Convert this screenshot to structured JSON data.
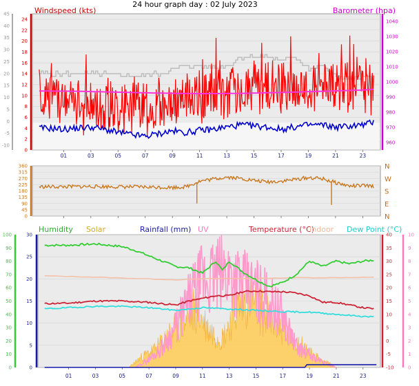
{
  "page_title": "24 hour graph day : 02 July 2023",
  "colors": {
    "plot_bg": "#ebebeb",
    "frame": "#9a9a9a",
    "grid": "#d2d2d2",
    "wind_gust": "#ff0000",
    "wind_avg": "#0000cc",
    "pressure": "#ff33dd",
    "baro_axis": "#cc00cc",
    "prev_gust": "#bdbdbd",
    "wind_dir": "#c8781e",
    "humidity": "#33cc33",
    "solar": "#ffcc55",
    "rainfall": "#1a1aaa",
    "uv": "#ff99cc",
    "temperature": "#cc2233",
    "indoor": "#f5c0a8",
    "dewpoint": "#33dddd",
    "uv_axis": "#ff77bb",
    "x_tick": "#1a237e"
  },
  "chart_data": [
    {
      "id": "wind_pressure",
      "type": "line",
      "title": "24 hour graph day : 02 July 2023",
      "xlabel": "",
      "ylabel": "",
      "x_tick_labels": [
        "01",
        "03",
        "05",
        "07",
        "09",
        "11",
        "13",
        "15",
        "17",
        "19",
        "21",
        "23"
      ],
      "x_tick_hours": [
        1,
        3,
        5,
        7,
        9,
        11,
        13,
        15,
        17,
        19,
        21,
        23
      ],
      "xlim_hours": [
        -1.3,
        24.3
      ],
      "left_axis_far": {
        "ticks": [
          -10,
          -5,
          0,
          5,
          10,
          15,
          20,
          25,
          30,
          35,
          40,
          45
        ],
        "ylim": [
          -12,
          45
        ]
      },
      "left_axis": {
        "label": "Windspeed (kts)",
        "ticks": [
          0,
          2,
          4,
          6,
          8,
          10,
          12,
          14,
          16,
          18,
          20,
          22,
          24
        ],
        "ylim": [
          0,
          25
        ]
      },
      "right_axis": {
        "label": "Barometer (hpa)",
        "ticks": [
          960,
          970,
          980,
          990,
          1000,
          1010,
          1020,
          1030,
          1040
        ],
        "ylim": [
          955,
          1045
        ]
      },
      "grid": true,
      "series": [
        {
          "key": "gust",
          "axis": "left",
          "x": [
            0,
            1,
            2,
            3,
            4,
            5,
            6,
            7,
            8,
            9,
            10,
            11,
            12,
            13,
            14,
            15,
            16,
            17,
            18,
            19,
            20,
            21,
            22,
            23,
            24
          ],
          "values": [
            10,
            9,
            8.5,
            8.5,
            8,
            8,
            8,
            7.5,
            8,
            9,
            9,
            10,
            10.5,
            11,
            11.5,
            12,
            11.5,
            11,
            11,
            11.5,
            12,
            12,
            11.5,
            12,
            11
          ]
        },
        {
          "key": "avg",
          "axis": "left",
          "x": [
            0,
            1,
            2,
            3,
            4,
            5,
            6,
            7,
            8,
            9,
            10,
            11,
            12,
            13,
            14,
            15,
            16,
            17,
            18,
            19,
            20,
            21,
            22,
            23,
            24
          ],
          "values": [
            4,
            3.8,
            4,
            4.2,
            3.8,
            3.2,
            2.8,
            2.5,
            3,
            3.5,
            3.2,
            3.6,
            3.8,
            4.2,
            4.6,
            4.4,
            4.2,
            3.8,
            4.2,
            4.6,
            4.6,
            4.2,
            4.4,
            4.6,
            5.2
          ]
        },
        {
          "key": "pressure",
          "axis": "right",
          "x": [
            -1,
            2,
            5,
            8,
            11,
            14,
            17,
            20,
            23,
            24
          ],
          "values": [
            994,
            993.8,
            993.2,
            992.6,
            992.2,
            992.4,
            993,
            993.8,
            994.6,
            995.2
          ]
        },
        {
          "key": "prev_gust",
          "axis": "left",
          "x": [
            -1,
            2,
            4,
            6,
            8,
            10,
            11,
            12,
            13,
            14,
            15,
            16,
            17,
            18,
            19,
            20,
            21,
            22,
            23,
            24
          ],
          "values": [
            14,
            14,
            14,
            13.5,
            14,
            15.5,
            15.5,
            15,
            15.5,
            17,
            17.2,
            17,
            16.5,
            17,
            15,
            15.5,
            13.5,
            13,
            13.5,
            13
          ]
        }
      ]
    },
    {
      "id": "wind_direction",
      "type": "line",
      "title": "",
      "x_tick_hours": [
        1,
        3,
        5,
        7,
        9,
        11,
        13,
        15,
        17,
        19,
        21,
        23
      ],
      "xlim_hours": [
        -1.3,
        24.3
      ],
      "left_axis": {
        "ticks": [
          0,
          45,
          90,
          135,
          180,
          225,
          270,
          315,
          360
        ],
        "ylim": [
          0,
          360
        ]
      },
      "right_axis": {
        "labels": [
          "N",
          "W",
          "S",
          "E",
          "N"
        ],
        "values": [
          360,
          270,
          180,
          90,
          0
        ]
      },
      "grid": true,
      "series": [
        {
          "key": "direction",
          "x": [
            -1,
            1,
            3,
            5,
            7,
            9,
            10,
            11,
            12,
            13,
            14,
            15,
            16,
            17,
            18,
            19,
            20,
            21,
            22,
            23,
            24
          ],
          "values": [
            210,
            210,
            212,
            210,
            208,
            205,
            210,
            250,
            265,
            280,
            270,
            255,
            245,
            250,
            262,
            275,
            268,
            240,
            215,
            218,
            212
          ]
        }
      ],
      "annotations": [
        {
          "x": 10.8,
          "value": 90
        },
        {
          "x": 20.7,
          "value": 80
        }
      ]
    },
    {
      "id": "temp_humidity_solar",
      "type": "line",
      "title": "",
      "x_tick_labels": [
        "01",
        "03",
        "05",
        "07",
        "09",
        "11",
        "13",
        "15",
        "17",
        "19",
        "21",
        "23"
      ],
      "x_tick_hours": [
        1,
        3,
        5,
        7,
        9,
        11,
        13,
        15,
        17,
        19,
        21,
        23
      ],
      "xlim_hours": [
        -1.3,
        24.3
      ],
      "legend": [
        "Humidity",
        "Solar",
        "Rainfall (mm)",
        "UV",
        "Temperature (°C)",
        "Indoor",
        "Dew Point (°C)"
      ],
      "axis_humidity": {
        "ticks": [
          0,
          10,
          20,
          30,
          40,
          50,
          60,
          70,
          80,
          90,
          100
        ],
        "ylim": [
          0,
          100
        ]
      },
      "axis_main": {
        "ticks": [
          0,
          5,
          10,
          15,
          20,
          25,
          30
        ],
        "ylim": [
          0,
          30
        ]
      },
      "axis_temperature": {
        "ticks": [
          -10,
          -5,
          0,
          5,
          10,
          15,
          20,
          25,
          30,
          35,
          40
        ],
        "ylim": [
          -10,
          40
        ]
      },
      "axis_uv": {
        "ticks": [
          0,
          1,
          2,
          3,
          4,
          5,
          6,
          7,
          8,
          9,
          10
        ],
        "ylim": [
          0,
          10
        ]
      },
      "grid": true,
      "series": [
        {
          "key": "humidity",
          "axis": "humidity",
          "x": [
            -1,
            1,
            3,
            5,
            6,
            7,
            8,
            9,
            10,
            11,
            12,
            12.5,
            13,
            14,
            15,
            16,
            17,
            18,
            19,
            20,
            21,
            22,
            23,
            24
          ],
          "values": [
            92,
            92,
            93,
            91,
            88,
            84,
            80,
            76,
            75,
            71,
            80,
            73,
            80,
            72,
            66,
            61,
            64,
            70,
            80,
            76,
            80,
            78,
            80,
            81
          ]
        },
        {
          "key": "temperature",
          "axis": "temperature",
          "x": [
            -1,
            1,
            3,
            5,
            7,
            9,
            10,
            11,
            12,
            13,
            14,
            15,
            16,
            17,
            18,
            19,
            20,
            21,
            22,
            23,
            24
          ],
          "values": [
            14,
            14.2,
            15,
            15,
            14.5,
            13.5,
            15,
            16,
            17,
            17,
            18.5,
            18.8,
            18.5,
            18.5,
            18,
            17,
            14.5,
            14.5,
            13.5,
            12.5,
            12
          ]
        },
        {
          "key": "indoor",
          "axis": "temperature",
          "x": [
            -1,
            3,
            6,
            9,
            12,
            15,
            18,
            21,
            24
          ],
          "values": [
            24.5,
            24,
            23.5,
            23,
            23.5,
            23.5,
            23.8,
            23.8,
            24
          ]
        },
        {
          "key": "dewpoint",
          "axis": "temperature",
          "x": [
            -1,
            1,
            3,
            5,
            7,
            9,
            11,
            13,
            15,
            17,
            19,
            21,
            23,
            24
          ],
          "values": [
            12,
            12.5,
            13,
            13,
            12.5,
            11.5,
            12.5,
            12,
            11.5,
            11,
            10.8,
            10,
            9.2,
            9
          ]
        },
        {
          "key": "solar",
          "axis": "main",
          "x": [
            -1,
            4.8,
            5.5,
            6.5,
            7.5,
            8.5,
            9.5,
            10.5,
            11.5,
            12.5,
            13.5,
            14.5,
            15.5,
            16.5,
            17.5,
            18.5,
            19,
            20,
            20.5,
            21
          ],
          "values": [
            0,
            0,
            0,
            3,
            5,
            9,
            12,
            16,
            10,
            8,
            16,
            19,
            15,
            12,
            8,
            6,
            4,
            2,
            1,
            0
          ]
        },
        {
          "key": "uv",
          "axis": "uv",
          "x": [
            -1,
            6,
            7,
            8,
            9,
            10,
            11,
            12,
            13,
            14,
            15,
            16,
            17,
            18,
            19,
            20,
            21
          ],
          "values": [
            0,
            0,
            0.6,
            1.5,
            3,
            5,
            6.6,
            6.8,
            7.2,
            6.2,
            5.8,
            5,
            3.8,
            1.6,
            0.9,
            0.4,
            0
          ]
        },
        {
          "key": "rainfall",
          "axis": "main",
          "x": [
            -1,
            18.65,
            18.8,
            24
          ],
          "values": [
            0,
            0,
            0.6,
            0.6
          ]
        }
      ]
    }
  ]
}
